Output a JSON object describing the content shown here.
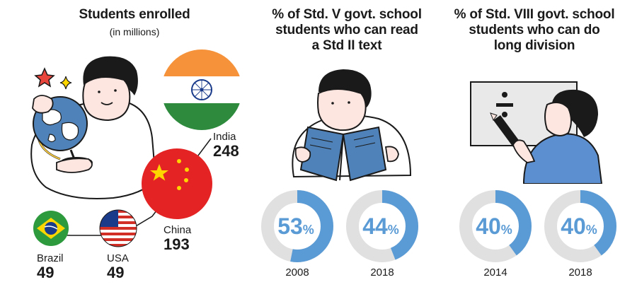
{
  "colors": {
    "accent": "#5b9bd5",
    "track": "#e0e0e0",
    "ink": "#1a1a1a",
    "india_saffron": "#f5923a",
    "india_green": "#2e8b3e",
    "china_red": "#e42424",
    "star_yellow": "#fdd600"
  },
  "panels": {
    "enrolled": {
      "title": "Students enrolled",
      "subtitle": "(in millions)",
      "countries": [
        {
          "name": "India",
          "value": "248"
        },
        {
          "name": "China",
          "value": "193"
        },
        {
          "name": "Brazil",
          "value": "49"
        },
        {
          "name": "USA",
          "value": "49"
        }
      ]
    },
    "reading": {
      "title_lines": [
        "% of Std. V govt. school",
        "students who can read",
        "a Std II text"
      ]
    },
    "division": {
      "title_lines": [
        "% of Std. VIII govt. school",
        "students who can do",
        "long division"
      ]
    }
  },
  "chart_data": [
    {
      "type": "bar",
      "title": "Students enrolled",
      "subtitle": "(in millions)",
      "categories": [
        "India",
        "China",
        "Brazil",
        "USA"
      ],
      "values": [
        248,
        193,
        49,
        49
      ]
    },
    {
      "type": "pie",
      "title": "% of Std. V govt. school students who can read a Std II text",
      "categories": [
        "2008",
        "2018"
      ],
      "values": [
        53,
        44
      ],
      "labels": [
        "53",
        "44"
      ],
      "unit": "%"
    },
    {
      "type": "pie",
      "title": "% of Std. VIII govt. school students who can do long division",
      "categories": [
        "2014",
        "2018"
      ],
      "values": [
        40,
        40
      ],
      "labels": [
        "40",
        "40"
      ],
      "unit": "%"
    }
  ]
}
